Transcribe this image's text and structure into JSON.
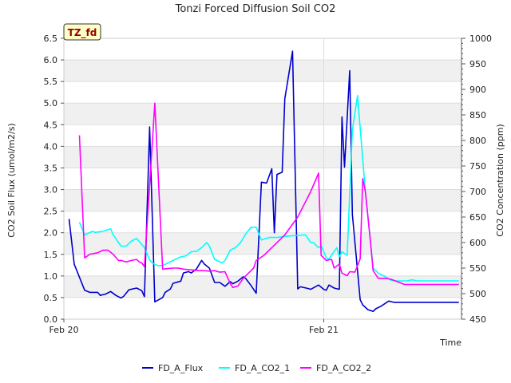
{
  "chart_data": {
    "type": "line",
    "title": "Tonzi Forced Diffusion Soil CO2",
    "badge": "TZ_fd",
    "xlabel": "Time",
    "ylabel_left": "CO2 Soil Flux (umol/m2/s)",
    "ylabel_right": "CO2 Concentration (ppm)",
    "x_range": [
      20.0,
      21.53
    ],
    "x_ticks": [
      {
        "value": 20.0,
        "label": "Feb 20"
      },
      {
        "value": 21.0,
        "label": "Feb 21"
      }
    ],
    "ylim_left": [
      0,
      6.5
    ],
    "yticks_left": [
      "0.0",
      "0.5",
      "1.0",
      "1.5",
      "2.0",
      "2.5",
      "3.0",
      "3.5",
      "4.0",
      "4.5",
      "5.0",
      "5.5",
      "6.0",
      "6.5"
    ],
    "ylim_right": [
      450,
      1000
    ],
    "yticks_right": [
      "450",
      "500",
      "550",
      "600",
      "650",
      "700",
      "750",
      "800",
      "850",
      "900",
      "950",
      "1000"
    ],
    "grid": true,
    "legend_position": "bottom",
    "series": [
      {
        "name": "FD_A_Flux",
        "axis": "left",
        "color": "#0000cc",
        "x": [
          20.02,
          20.04,
          20.08,
          20.1,
          20.13,
          20.14,
          20.16,
          20.18,
          20.2,
          20.22,
          20.23,
          20.25,
          20.28,
          20.3,
          20.31,
          20.33,
          20.35,
          20.35,
          20.38,
          20.39,
          20.41,
          20.42,
          20.45,
          20.46,
          20.48,
          20.49,
          20.51,
          20.53,
          20.54,
          20.56,
          20.58,
          20.6,
          20.62,
          20.64,
          20.65,
          20.67,
          20.69,
          20.7,
          20.72,
          20.74,
          20.76,
          20.78,
          20.8,
          20.81,
          20.82,
          20.84,
          20.85,
          20.88,
          20.9,
          20.91,
          20.94,
          20.95,
          20.98,
          21.0,
          21.01,
          21.02,
          21.04,
          21.06,
          21.07,
          21.08,
          21.1,
          21.11,
          21.14,
          21.15,
          21.17,
          21.19,
          21.2,
          21.22,
          21.25,
          21.27,
          21.29,
          21.31,
          21.33,
          21.35,
          21.37,
          21.39,
          21.42,
          21.44,
          21.46,
          21.48,
          21.5,
          21.52
        ],
        "y": [
          2.32,
          1.27,
          0.67,
          0.62,
          0.62,
          0.55,
          0.58,
          0.64,
          0.55,
          0.49,
          0.53,
          0.68,
          0.72,
          0.66,
          0.52,
          4.45,
          0.4,
          0.4,
          0.5,
          0.62,
          0.7,
          0.83,
          0.88,
          1.07,
          1.1,
          1.07,
          1.16,
          1.36,
          1.28,
          1.18,
          0.85,
          0.85,
          0.76,
          0.87,
          0.82,
          0.88,
          0.98,
          0.94,
          0.78,
          0.6,
          3.17,
          3.15,
          3.48,
          2.0,
          3.35,
          3.4,
          5.1,
          6.2,
          0.7,
          0.75,
          0.71,
          0.69,
          0.79,
          0.69,
          0.67,
          0.79,
          0.72,
          0.69,
          4.68,
          3.52,
          5.75,
          2.43,
          0.45,
          0.33,
          0.22,
          0.18,
          0.24,
          0.3,
          0.42,
          0.39,
          0.39,
          0.39,
          0.39,
          0.39,
          0.39,
          0.39,
          0.39,
          0.39,
          0.39,
          0.39,
          0.39,
          0.39
        ]
      },
      {
        "name": "FD_A_CO2_1",
        "axis": "right",
        "color": "#00ffff",
        "x": [
          20.06,
          20.08,
          20.11,
          20.12,
          20.15,
          20.18,
          20.19,
          20.21,
          20.22,
          20.24,
          20.26,
          20.28,
          20.31,
          20.33,
          20.34,
          20.36,
          20.38,
          20.4,
          20.42,
          20.45,
          20.47,
          20.49,
          20.51,
          20.53,
          20.55,
          20.56,
          20.58,
          20.61,
          20.62,
          20.64,
          20.66,
          20.68,
          20.7,
          20.72,
          20.74,
          20.76,
          20.79,
          20.82,
          20.85,
          20.87,
          20.9,
          20.93,
          20.95,
          20.96,
          20.98,
          20.99,
          21.01,
          21.02,
          21.05,
          21.06,
          21.07,
          21.09,
          21.11,
          21.13,
          21.16,
          21.19,
          21.21,
          21.23,
          21.26,
          21.28,
          21.3,
          21.32,
          21.34,
          21.36,
          21.37,
          21.38,
          21.4,
          21.42,
          21.44,
          21.47,
          21.5,
          21.52
        ],
        "y": [
          640,
          615,
          622,
          620,
          622,
          627,
          615,
          600,
          593,
          593,
          603,
          608,
          590,
          566,
          560,
          555,
          555,
          560,
          565,
          572,
          574,
          582,
          583,
          590,
          600,
          593,
          567,
          560,
          565,
          585,
          590,
          600,
          617,
          630,
          630,
          605,
          610,
          610,
          612,
          613,
          614,
          615,
          600,
          600,
          590,
          594,
          570,
          568,
          590,
          572,
          582,
          575,
          820,
          888,
          700,
          550,
          540,
          535,
          526,
          525,
          525,
          525,
          527,
          525,
          525,
          525,
          525,
          525,
          525,
          525,
          525,
          525
        ]
      },
      {
        "name": "FD_A_CO2_2",
        "axis": "right",
        "color": "#ff00ff",
        "x": [
          20.06,
          20.08,
          20.1,
          20.13,
          20.15,
          20.17,
          20.19,
          20.21,
          20.22,
          20.24,
          20.26,
          20.28,
          20.29,
          20.3,
          20.31,
          20.35,
          20.38,
          20.4,
          20.42,
          20.44,
          20.46,
          20.48,
          20.5,
          20.52,
          20.54,
          20.56,
          20.58,
          20.6,
          20.62,
          20.64,
          20.65,
          20.67,
          20.69,
          20.71,
          20.73,
          20.74,
          20.77,
          20.8,
          20.85,
          20.9,
          20.95,
          20.98,
          20.99,
          21.01,
          21.03,
          21.04,
          21.06,
          21.07,
          21.09,
          21.1,
          21.12,
          21.14,
          21.15,
          21.16,
          21.18,
          21.19,
          21.21,
          21.24,
          21.26,
          21.29,
          21.31,
          21.33,
          21.36,
          21.39,
          21.42,
          21.45,
          21.48,
          21.5,
          21.52
        ],
        "y": [
          810,
          570,
          577,
          580,
          585,
          585,
          577,
          565,
          565,
          562,
          565,
          567,
          562,
          560,
          553,
          873,
          548,
          549,
          550,
          550,
          548,
          547,
          546,
          545,
          545,
          544,
          545,
          542,
          543,
          520,
          512,
          515,
          530,
          540,
          550,
          565,
          575,
          590,
          615,
          650,
          700,
          736,
          575,
          565,
          567,
          550,
          558,
          540,
          535,
          543,
          542,
          568,
          725,
          700,
          600,
          545,
          530,
          530,
          528,
          522,
          518,
          518,
          518,
          518,
          518,
          518,
          518,
          518,
          518
        ]
      }
    ]
  }
}
